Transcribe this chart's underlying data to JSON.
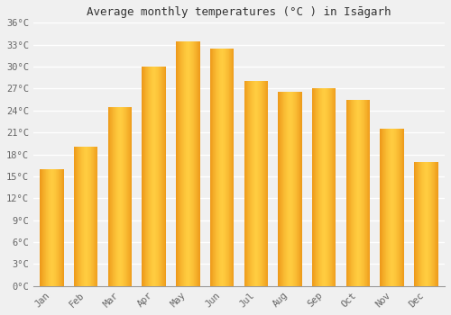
{
  "months": [
    "Jan",
    "Feb",
    "Mar",
    "Apr",
    "May",
    "Jun",
    "Jul",
    "Aug",
    "Sep",
    "Oct",
    "Nov",
    "Dec"
  ],
  "temperatures": [
    16,
    19,
    24.5,
    30,
    33.5,
    32.5,
    28,
    26.5,
    27,
    25.5,
    21.5,
    17
  ],
  "title": "Average monthly temperatures (°C ) in Isāgarh",
  "ylim_max": 36,
  "ylim_min": 0,
  "ytick_step": 3,
  "background_color": "#f0f0f0",
  "plot_bg_color": "#f0f0f0",
  "grid_color": "#ffffff",
  "bar_color_center": "#FFB833",
  "bar_color_edge": "#E07800",
  "bar_width": 0.7,
  "font_size_title": 9,
  "font_size_ticks": 7.5
}
